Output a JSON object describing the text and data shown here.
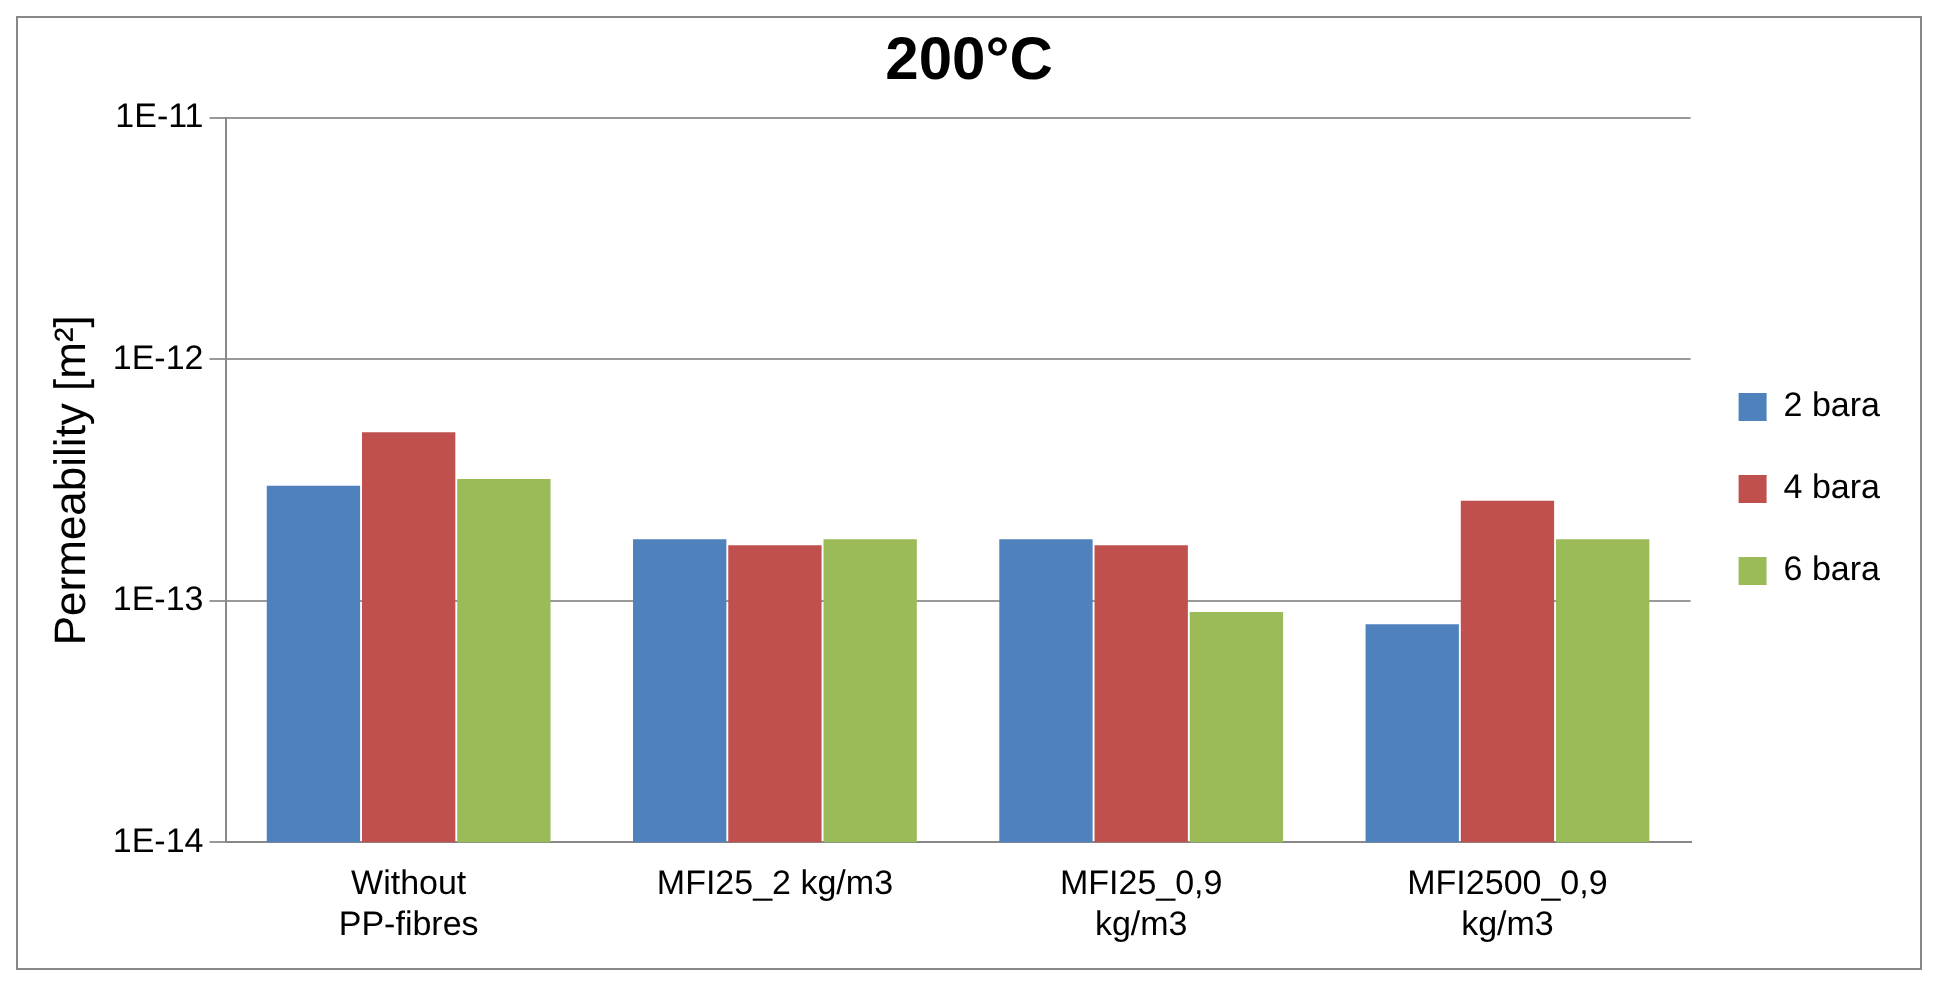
{
  "chart_data": {
    "type": "bar",
    "title": "200°C",
    "ylabel": "Permeability [m²]",
    "categories": [
      "Without PP-fibres",
      "MFI25_2 kg/m3",
      "MFI25_0,9 kg/m3",
      "MFI2500_0,9 kg/m3"
    ],
    "series": [
      {
        "name": "2 bara",
        "color": "#4f81bd",
        "values": [
          3e-13,
          1.8e-13,
          1.8e-13,
          8e-14
        ]
      },
      {
        "name": "4 bara",
        "color": "#c0504d",
        "values": [
          5e-13,
          1.7e-13,
          1.7e-13,
          2.6e-13
        ]
      },
      {
        "name": "6 bara",
        "color": "#9bbb59",
        "values": [
          3.2e-13,
          1.8e-13,
          9e-14,
          1.8e-13
        ]
      }
    ],
    "log": "y",
    "ylim": [
      1e-14,
      1e-11
    ],
    "yticks": [
      {
        "value": 1e-14,
        "label": "1E-14"
      },
      {
        "value": 1e-13,
        "label": "1E-13"
      },
      {
        "value": 1e-12,
        "label": "1E-12"
      },
      {
        "value": 1e-11,
        "label": "1E-11"
      }
    ],
    "grid": "y",
    "legend": "right"
  }
}
